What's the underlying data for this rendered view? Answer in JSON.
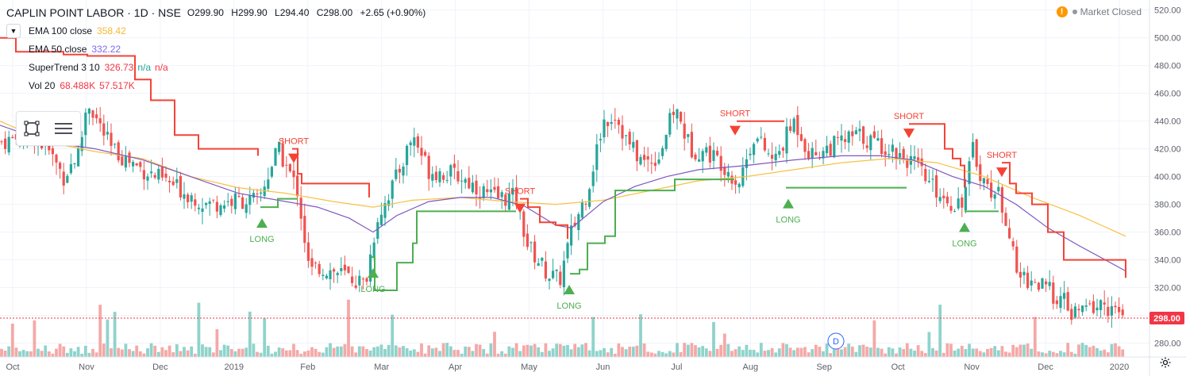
{
  "header": {
    "symbol_line": "CAPLIN POINT LABOR · 1D · NSE",
    "ohlc": [
      {
        "label": "O",
        "value": "299.90"
      },
      {
        "label": "H",
        "value": "299.90"
      },
      {
        "label": "L",
        "value": "294.40"
      },
      {
        "label": "C",
        "value": "298.00"
      }
    ],
    "change": "+2.65 (+0.90%)"
  },
  "indicators": [
    {
      "name": "EMA 100 close",
      "values": [
        "358.42"
      ],
      "color": "#f7b731"
    },
    {
      "name": "EMA 50 close",
      "values": [
        "332.22"
      ],
      "color": "#7b68ee"
    },
    {
      "name": "SuperTrend 3 10",
      "values": [
        "326.73",
        "n/a",
        "n/a"
      ],
      "colors": [
        "#f23645",
        "#26a69a",
        "#f23645"
      ]
    },
    {
      "name": "Vol 20",
      "values": [
        "68.488K",
        "57.517K"
      ],
      "color": "#f23645"
    }
  ],
  "status": {
    "text": "Market Closed"
  },
  "price_badge": "298.00",
  "colors": {
    "up": "#26a69a",
    "down": "#ef5350",
    "ema100": "#f6c244",
    "ema50": "#7e57c2",
    "st_down": "#f44336",
    "st_up": "#4caf50",
    "vol_up": "#8fd3cb",
    "vol_down": "#f4a9a7",
    "grid": "#f0f3fa",
    "axis_text": "#5d606b",
    "badge": "#f23645"
  },
  "chart_data": {
    "type": "candlestick",
    "y_ticks": [
      280,
      300,
      320,
      340,
      360,
      380,
      400,
      420,
      440,
      460,
      480,
      500,
      520
    ],
    "ylim": [
      270,
      525
    ],
    "x_labels": [
      "Oct",
      "Nov",
      "Dec",
      "2019",
      "Feb",
      "Mar",
      "Apr",
      "May",
      "Jun",
      "Jul",
      "Aug",
      "Sep",
      "Oct",
      "Nov",
      "Dec",
      "2020"
    ],
    "last_close": 298.0,
    "annotations": [
      {
        "text": "LONG",
        "kind": "long"
      },
      {
        "text": "SHORT",
        "kind": "short"
      },
      {
        "text": "LONG",
        "kind": "long"
      },
      {
        "text": "SHORT",
        "kind": "short"
      },
      {
        "text": "LONG",
        "kind": "long"
      },
      {
        "text": "SHORT",
        "kind": "short"
      },
      {
        "text": "LONG",
        "kind": "long"
      },
      {
        "text": "SHORT",
        "kind": "short"
      },
      {
        "text": "LONG",
        "kind": "long"
      },
      {
        "text": "SHORT",
        "kind": "short"
      }
    ],
    "dividend_marker": "D",
    "close_path": [
      [
        0,
        425
      ],
      [
        40,
        430
      ],
      [
        60,
        420
      ],
      [
        80,
        400
      ],
      [
        100,
        418
      ],
      [
        110,
        455
      ],
      [
        140,
        420
      ],
      [
        180,
        405
      ],
      [
        230,
        390
      ],
      [
        260,
        380
      ],
      [
        300,
        383
      ],
      [
        325,
        382
      ],
      [
        350,
        420
      ],
      [
        375,
        390
      ],
      [
        390,
        330
      ],
      [
        400,
        335
      ],
      [
        430,
        330
      ],
      [
        450,
        325
      ],
      [
        460,
        322
      ],
      [
        475,
        370
      ],
      [
        500,
        400
      ],
      [
        520,
        430
      ],
      [
        540,
        405
      ],
      [
        580,
        400
      ],
      [
        620,
        385
      ],
      [
        650,
        385
      ],
      [
        665,
        350
      ],
      [
        690,
        330
      ],
      [
        705,
        325
      ],
      [
        720,
        360
      ],
      [
        740,
        390
      ],
      [
        760,
        440
      ],
      [
        775,
        445
      ],
      [
        790,
        425
      ],
      [
        810,
        410
      ],
      [
        830,
        415
      ],
      [
        850,
        450
      ],
      [
        870,
        420
      ],
      [
        890,
        418
      ],
      [
        910,
        410
      ],
      [
        930,
        395
      ],
      [
        950,
        430
      ],
      [
        975,
        410
      ],
      [
        1000,
        440
      ],
      [
        1010,
        430
      ],
      [
        1020,
        415
      ],
      [
        1040,
        420
      ],
      [
        1060,
        425
      ],
      [
        1080,
        430
      ],
      [
        1100,
        425
      ],
      [
        1130,
        418
      ],
      [
        1150,
        410
      ],
      [
        1170,
        395
      ],
      [
        1200,
        380
      ],
      [
        1215,
        385
      ],
      [
        1225,
        420
      ],
      [
        1240,
        395
      ],
      [
        1260,
        385
      ],
      [
        1270,
        365
      ],
      [
        1280,
        330
      ],
      [
        1300,
        325
      ],
      [
        1320,
        318
      ],
      [
        1340,
        310
      ],
      [
        1350,
        300
      ],
      [
        1370,
        305
      ],
      [
        1390,
        308
      ],
      [
        1405,
        302
      ],
      [
        1418,
        298
      ]
    ],
    "ema100_path": [
      [
        0,
        440
      ],
      [
        60,
        425
      ],
      [
        120,
        418
      ],
      [
        180,
        413
      ],
      [
        240,
        400
      ],
      [
        300,
        392
      ],
      [
        360,
        388
      ],
      [
        420,
        382
      ],
      [
        470,
        378
      ],
      [
        520,
        383
      ],
      [
        580,
        385
      ],
      [
        640,
        382
      ],
      [
        700,
        380
      ],
      [
        760,
        383
      ],
      [
        820,
        390
      ],
      [
        880,
        397
      ],
      [
        940,
        400
      ],
      [
        1000,
        405
      ],
      [
        1060,
        410
      ],
      [
        1120,
        413
      ],
      [
        1180,
        410
      ],
      [
        1240,
        400
      ],
      [
        1300,
        385
      ],
      [
        1360,
        372
      ],
      [
        1418,
        357
      ]
    ],
    "ema50_path": [
      [
        0,
        437
      ],
      [
        60,
        425
      ],
      [
        120,
        420
      ],
      [
        180,
        412
      ],
      [
        240,
        400
      ],
      [
        300,
        388
      ],
      [
        360,
        382
      ],
      [
        400,
        378
      ],
      [
        440,
        370
      ],
      [
        470,
        360
      ],
      [
        500,
        372
      ],
      [
        540,
        382
      ],
      [
        580,
        385
      ],
      [
        620,
        385
      ],
      [
        660,
        379
      ],
      [
        700,
        365
      ],
      [
        720,
        363
      ],
      [
        760,
        382
      ],
      [
        800,
        393
      ],
      [
        840,
        400
      ],
      [
        880,
        405
      ],
      [
        940,
        408
      ],
      [
        1000,
        412
      ],
      [
        1060,
        415
      ],
      [
        1110,
        415
      ],
      [
        1150,
        412
      ],
      [
        1200,
        400
      ],
      [
        1240,
        393
      ],
      [
        1280,
        380
      ],
      [
        1320,
        363
      ],
      [
        1360,
        350
      ],
      [
        1418,
        332
      ]
    ],
    "supertrend_segments": [
      {
        "dir": "down",
        "points": [
          [
            0,
            500
          ],
          [
            20,
            490
          ],
          [
            80,
            488
          ],
          [
            110,
            487
          ],
          [
            170,
            470
          ],
          [
            190,
            455
          ],
          [
            220,
            430
          ],
          [
            250,
            420
          ],
          [
            290,
            420
          ],
          [
            325,
            415
          ]
        ]
      },
      {
        "dir": "up",
        "points": [
          [
            328,
            378
          ],
          [
            345,
            378
          ],
          [
            350,
            384
          ],
          [
            375,
            384
          ]
        ]
      },
      {
        "dir": "down",
        "points": [
          [
            368,
            420
          ],
          [
            375,
            402
          ],
          [
            380,
            395
          ],
          [
            430,
            395
          ],
          [
            465,
            385
          ]
        ]
      },
      {
        "dir": "up",
        "points": [
          [
            468,
            342
          ],
          [
            472,
            318
          ],
          [
            485,
            318
          ],
          [
            500,
            338
          ],
          [
            520,
            352
          ],
          [
            525,
            375
          ],
          [
            650,
            375
          ]
        ]
      },
      {
        "dir": "down",
        "points": [
          [
            655,
            384
          ],
          [
            665,
            378
          ],
          [
            680,
            367
          ],
          [
            700,
            365
          ],
          [
            715,
            355
          ]
        ]
      },
      {
        "dir": "up",
        "points": [
          [
            718,
            330
          ],
          [
            730,
            333
          ],
          [
            740,
            352
          ],
          [
            762,
            357
          ],
          [
            775,
            390
          ],
          [
            845,
            390
          ],
          [
            850,
            398
          ],
          [
            925,
            398
          ]
        ]
      },
      {
        "dir": "down",
        "points": [
          [
            928,
            440
          ],
          [
            988,
            440
          ]
        ]
      },
      {
        "dir": "up",
        "points": [
          [
            990,
            392
          ],
          [
            1142,
            392
          ]
        ]
      },
      {
        "dir": "down",
        "points": [
          [
            1145,
            438
          ],
          [
            1185,
            438
          ],
          [
            1190,
            420
          ],
          [
            1200,
            413
          ],
          [
            1210,
            408
          ],
          [
            1215,
            392
          ]
        ]
      },
      {
        "dir": "up",
        "points": [
          [
            1215,
            375
          ],
          [
            1258,
            375
          ]
        ]
      },
      {
        "dir": "down",
        "points": [
          [
            1262,
            410
          ],
          [
            1272,
            395
          ],
          [
            1280,
            388
          ],
          [
            1300,
            380
          ],
          [
            1320,
            360
          ],
          [
            1340,
            340
          ],
          [
            1400,
            340
          ],
          [
            1418,
            327
          ]
        ]
      }
    ]
  }
}
